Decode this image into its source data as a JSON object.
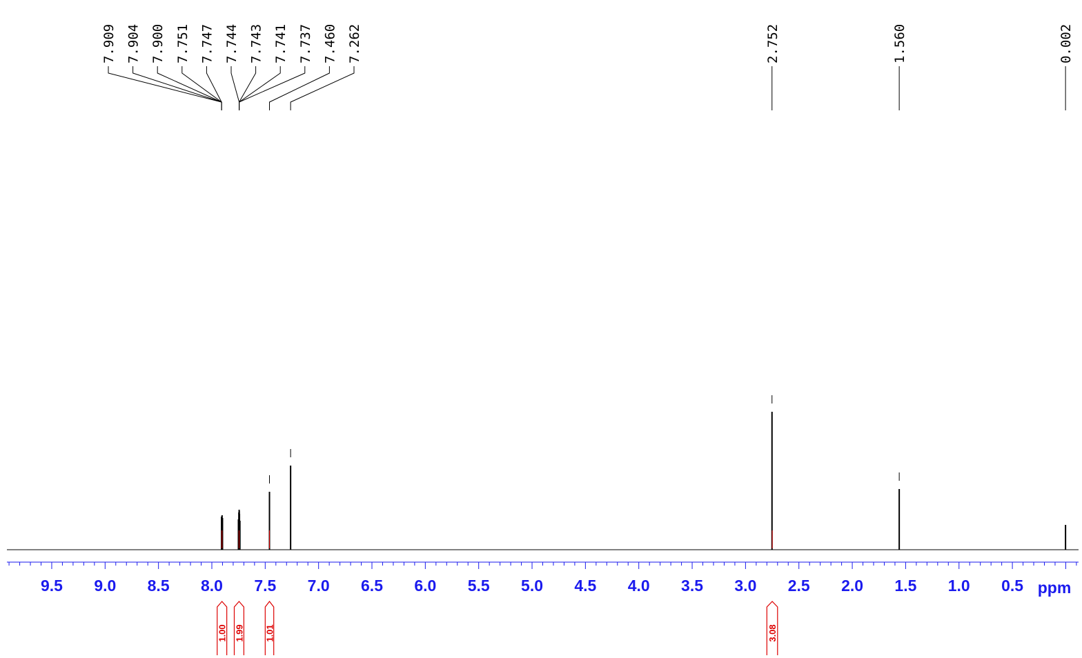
{
  "chart_data": {
    "type": "line",
    "title": "",
    "xlabel": "ppm",
    "ylabel": "",
    "x_reversed": true,
    "xlim": [
      9.92,
      -0.12
    ],
    "grid": false,
    "legend": "none",
    "axis_color": "#1a1aee",
    "spectrum_color": "#000000",
    "integral_color": "#dd0000",
    "x_ticks": [
      9.5,
      9.0,
      8.5,
      8.0,
      7.5,
      7.0,
      6.5,
      6.0,
      5.5,
      5.0,
      4.5,
      4.0,
      3.5,
      3.0,
      2.5,
      2.0,
      1.5,
      1.0,
      0.5
    ],
    "x_tick_labels": [
      "9.5",
      "9.0",
      "8.5",
      "8.0",
      "7.5",
      "7.0",
      "6.5",
      "6.0",
      "5.5",
      "5.0",
      "4.5",
      "4.0",
      "3.5",
      "3.0",
      "2.5",
      "2.0",
      "1.5",
      "1.0",
      "0.5"
    ],
    "peak_labels": [
      "7.909",
      "7.904",
      "7.900",
      "7.751",
      "7.747",
      "7.744",
      "7.743",
      "7.741",
      "7.737",
      "7.460",
      "7.262",
      "2.752",
      "1.560",
      "0.002"
    ],
    "peaks": [
      {
        "ppm": 7.909,
        "intensity": 0.24
      },
      {
        "ppm": 7.904,
        "intensity": 0.25
      },
      {
        "ppm": 7.9,
        "intensity": 0.23
      },
      {
        "ppm": 7.751,
        "intensity": 0.22
      },
      {
        "ppm": 7.747,
        "intensity": 0.27
      },
      {
        "ppm": 7.744,
        "intensity": 0.29
      },
      {
        "ppm": 7.743,
        "intensity": 0.28
      },
      {
        "ppm": 7.741,
        "intensity": 0.26
      },
      {
        "ppm": 7.737,
        "intensity": 0.21
      },
      {
        "ppm": 7.46,
        "intensity": 0.42
      },
      {
        "ppm": 7.262,
        "intensity": 0.61
      },
      {
        "ppm": 2.752,
        "intensity": 1.0
      },
      {
        "ppm": 1.56,
        "intensity": 0.44
      },
      {
        "ppm": 0.002,
        "intensity": 0.18
      }
    ],
    "integrals": [
      {
        "from": 7.95,
        "to": 7.86,
        "value": "1.00"
      },
      {
        "from": 7.79,
        "to": 7.7,
        "value": "1.99"
      },
      {
        "from": 7.5,
        "to": 7.42,
        "value": "1.01"
      },
      {
        "from": 2.8,
        "to": 2.7,
        "value": "3.08"
      }
    ]
  }
}
